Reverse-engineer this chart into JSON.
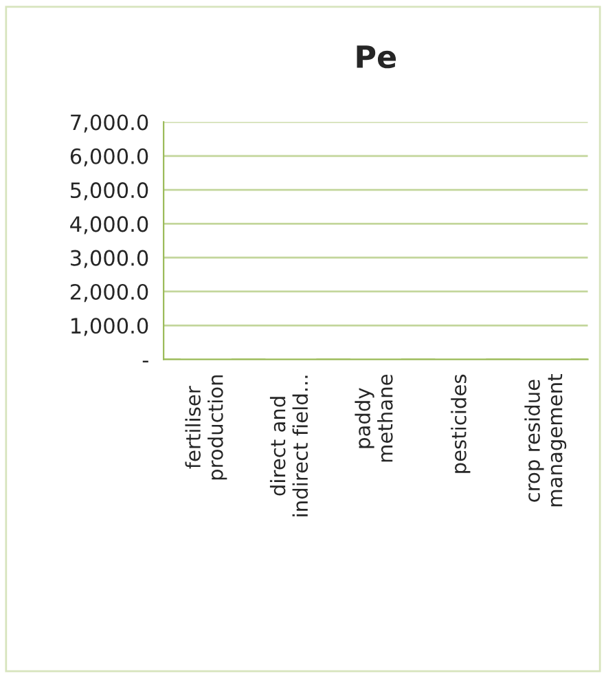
{
  "chart_data": {
    "type": "bar",
    "title": "Pe",
    "categories": [
      "fertiliser production",
      "direct and indirect field...",
      "paddy methane",
      "pesticides",
      "crop residue management"
    ],
    "values": [
      0,
      0,
      0,
      0,
      0
    ],
    "ylim": [
      0,
      7000
    ],
    "yticks": [
      {
        "value": 0,
        "label": "-"
      },
      {
        "value": 1000,
        "label": "1,000.0"
      },
      {
        "value": 2000,
        "label": "2,000.0"
      },
      {
        "value": 3000,
        "label": "3,000.0"
      },
      {
        "value": 4000,
        "label": "4,000.0"
      },
      {
        "value": 5000,
        "label": "5,000.0"
      },
      {
        "value": 6000,
        "label": "6,000.0"
      },
      {
        "value": 7000,
        "label": "7,000.0"
      }
    ],
    "grid": "y"
  }
}
